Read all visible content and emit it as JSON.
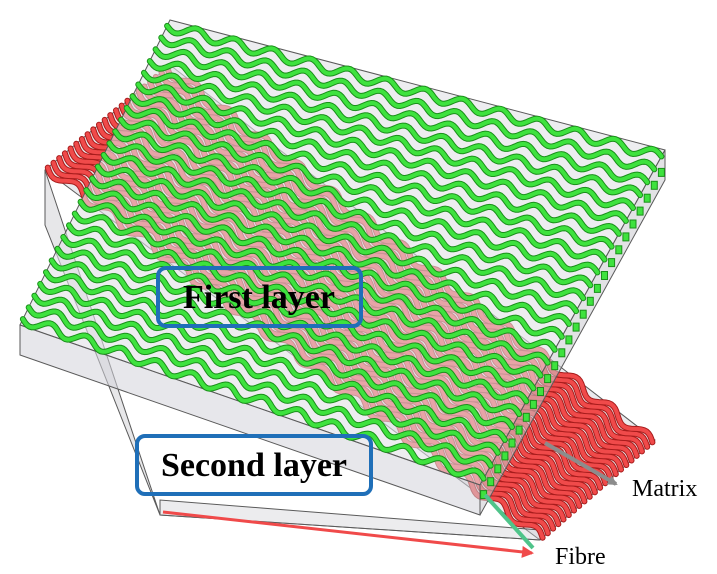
{
  "labels": {
    "first_layer": "First layer",
    "second_layer": "Second layer",
    "matrix": "Matrix",
    "fibre": "Fibre"
  },
  "colors": {
    "first_layer_fibre": "#3ee23e",
    "first_layer_fibre_dark": "#1a8f1a",
    "second_layer_fibre": "#f04a4a",
    "second_layer_fibre_dark": "#a81c1c",
    "matrix_fill": "#d9d9de",
    "matrix_edge": "#5a5a5a",
    "label_box_border": "#1f6fb8",
    "matrix_arrow": "#8c8c8c",
    "fibre_arrow_green": "#4fc48a",
    "fibre_arrow_red": "#f04a4a"
  }
}
